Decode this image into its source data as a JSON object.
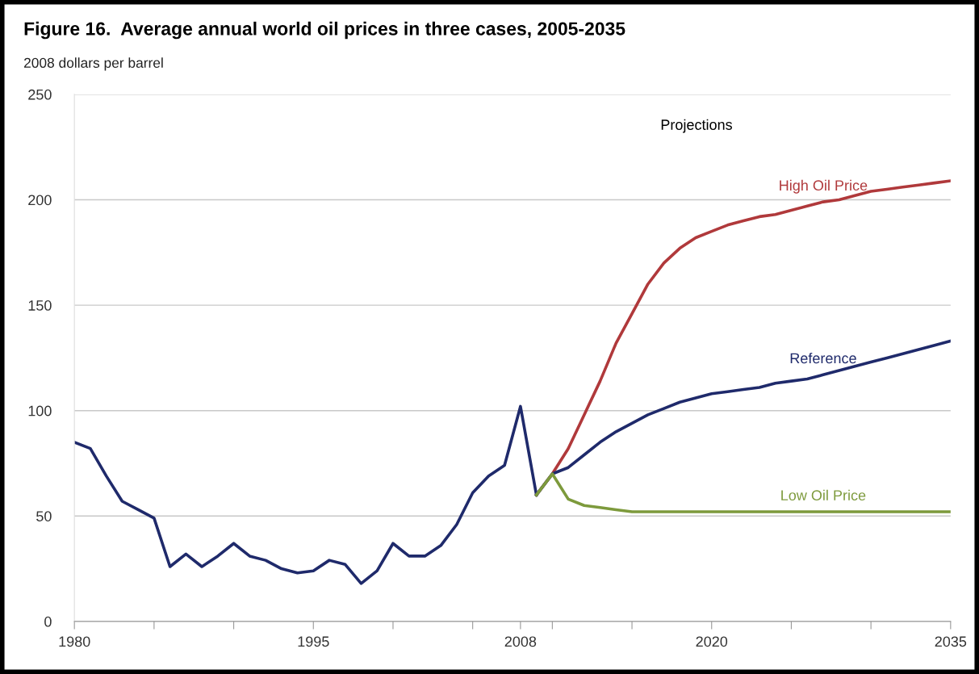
{
  "chart_data": {
    "type": "line",
    "title": "Figure 16.  Average annual world oil prices in three cases, 2005-2035",
    "ylabel": "2008 dollars per barrel",
    "annotations": [
      "Projections"
    ],
    "xlim": [
      1980,
      2035
    ],
    "ylim": [
      0,
      250
    ],
    "yticks": [
      0,
      50,
      100,
      150,
      200,
      250
    ],
    "xticks": [
      1980,
      {
        "value": 1985,
        "label": null
      },
      {
        "value": 1990,
        "label": null
      },
      1995,
      {
        "value": 2000,
        "label": null
      },
      {
        "value": 2005,
        "label": null
      },
      2008,
      {
        "value": 2010,
        "label": null
      },
      {
        "value": 2015,
        "label": null
      },
      2020,
      {
        "value": 2025,
        "label": null
      },
      {
        "value": 2030,
        "label": null
      },
      2035
    ],
    "grid": "y",
    "legend": false,
    "series": [
      {
        "color": "#1f2a6b",
        "x": [
          1980,
          1981,
          1982,
          1983,
          1984,
          1985,
          1986,
          1987,
          1988,
          1989,
          1990,
          1991,
          1992,
          1993,
          1994,
          1995,
          1996,
          1997,
          1998,
          1999,
          2000,
          2001,
          2002,
          2003,
          2004,
          2005,
          2006,
          2007,
          2008,
          2009
        ],
        "values": [
          85,
          82,
          69,
          57,
          53,
          49,
          26,
          32,
          26,
          31,
          37,
          31,
          29,
          25,
          23,
          24,
          29,
          27,
          18,
          24,
          37,
          31,
          31,
          36,
          46,
          61,
          69,
          74,
          102,
          60
        ]
      },
      {
        "name": "High Oil Price",
        "color": "#b0393b",
        "x": [
          2009,
          2010,
          2011,
          2012,
          2013,
          2014,
          2015,
          2016,
          2017,
          2018,
          2019,
          2020,
          2021,
          2022,
          2023,
          2024,
          2025,
          2026,
          2027,
          2028,
          2029,
          2030,
          2031,
          2032,
          2033,
          2034,
          2035
        ],
        "values": [
          60,
          70,
          82,
          98,
          114,
          132,
          146,
          160,
          170,
          177,
          182,
          185,
          188,
          190,
          192,
          193,
          195,
          197,
          199,
          200,
          202,
          204,
          205,
          206,
          207,
          208,
          209
        ]
      },
      {
        "name": "Reference",
        "color": "#1f2a6b",
        "x": [
          2009,
          2010,
          2011,
          2012,
          2013,
          2014,
          2015,
          2016,
          2017,
          2018,
          2019,
          2020,
          2021,
          2022,
          2023,
          2024,
          2025,
          2026,
          2027,
          2028,
          2029,
          2030,
          2031,
          2032,
          2033,
          2034,
          2035
        ],
        "values": [
          60,
          70,
          73,
          79,
          85,
          90,
          94,
          98,
          101,
          104,
          106,
          108,
          109,
          110,
          111,
          113,
          114,
          115,
          117,
          119,
          121,
          123,
          125,
          127,
          129,
          131,
          133
        ]
      },
      {
        "name": "Low Oil Price",
        "color": "#7d9a3c",
        "x": [
          2009,
          2010,
          2011,
          2012,
          2013,
          2014,
          2015,
          2016,
          2017,
          2018,
          2019,
          2020,
          2021,
          2022,
          2023,
          2024,
          2025,
          2026,
          2027,
          2028,
          2029,
          2030,
          2031,
          2032,
          2033,
          2034,
          2035
        ],
        "values": [
          60,
          70,
          58,
          55,
          54,
          53,
          52,
          52,
          52,
          52,
          52,
          52,
          52,
          52,
          52,
          52,
          52,
          52,
          52,
          52,
          52,
          52,
          52,
          52,
          52,
          52,
          52
        ]
      }
    ]
  }
}
